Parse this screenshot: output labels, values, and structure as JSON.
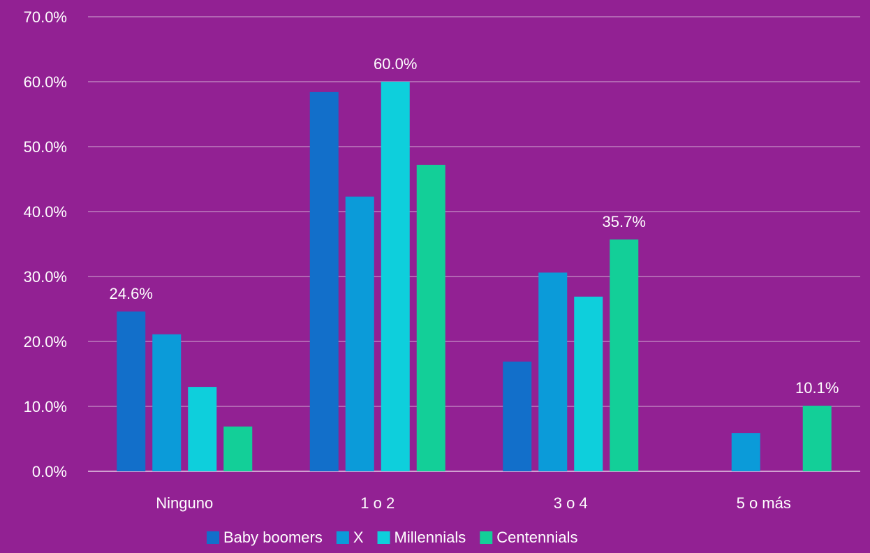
{
  "chart_data": {
    "type": "bar",
    "categories": [
      "Ninguno",
      "1 o 2",
      "3 o 4",
      "5 o más"
    ],
    "series": [
      {
        "name": "Baby boomers",
        "color": "#126fca",
        "values": [
          24.6,
          58.4,
          16.9,
          0.0
        ]
      },
      {
        "name": "X",
        "color": "#0b9bd9",
        "values": [
          21.1,
          42.3,
          30.6,
          5.9
        ]
      },
      {
        "name": "Millennials",
        "color": "#0ecfdc",
        "values": [
          13.0,
          60.0,
          26.9,
          0.0
        ]
      },
      {
        "name": "Centennials",
        "color": "#13cf98",
        "values": [
          6.9,
          47.2,
          35.7,
          10.1
        ]
      }
    ],
    "data_labels": [
      {
        "category": "Ninguno",
        "series": "Baby boomers",
        "text": "24.6%"
      },
      {
        "category": "1 o 2",
        "series": "Millennials",
        "text": "60.0%"
      },
      {
        "category": "3 o 4",
        "series": "Centennials",
        "text": "35.7%"
      },
      {
        "category": "5 o más",
        "series": "Centennials",
        "text": "10.1%"
      }
    ],
    "y_ticks": [
      "0.0%",
      "10.0%",
      "20.0%",
      "30.0%",
      "40.0%",
      "50.0%",
      "60.0%",
      "70.0%"
    ],
    "ylim": [
      0,
      70
    ],
    "grid": true,
    "legend_position": "bottom",
    "title": "",
    "xlabel": "",
    "ylabel": ""
  }
}
